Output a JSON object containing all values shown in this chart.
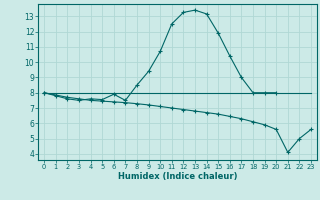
{
  "xlabel": "Humidex (Indice chaleur)",
  "xlim": [
    -0.5,
    23.5
  ],
  "ylim": [
    3.6,
    13.8
  ],
  "yticks": [
    4,
    5,
    6,
    7,
    8,
    9,
    10,
    11,
    12,
    13
  ],
  "xticks": [
    0,
    1,
    2,
    3,
    4,
    5,
    6,
    7,
    8,
    9,
    10,
    11,
    12,
    13,
    14,
    15,
    16,
    17,
    18,
    19,
    20,
    21,
    22,
    23
  ],
  "background_color": "#cceae7",
  "grid_color": "#b0d8d4",
  "line_color": "#006666",
  "curve1_x": [
    0,
    1,
    2,
    3,
    4,
    5,
    6,
    7,
    8,
    9,
    10,
    11,
    12,
    13,
    14,
    15,
    16,
    17,
    18,
    19,
    20
  ],
  "curve1_y": [
    8.0,
    7.8,
    7.6,
    7.5,
    7.6,
    7.55,
    7.9,
    7.5,
    8.5,
    9.4,
    10.7,
    12.5,
    13.25,
    13.4,
    13.15,
    11.9,
    10.4,
    9.0,
    8.0,
    8.0,
    8.0
  ],
  "curve2_x": [
    0,
    1,
    2,
    3,
    4,
    5,
    6,
    7,
    8,
    9,
    10,
    11,
    12,
    13,
    14,
    15,
    16,
    17,
    18,
    19,
    20,
    21,
    22,
    23
  ],
  "curve2_y": [
    8.0,
    7.85,
    7.7,
    7.6,
    7.5,
    7.45,
    7.4,
    7.35,
    7.28,
    7.2,
    7.1,
    7.0,
    6.9,
    6.8,
    6.7,
    6.6,
    6.45,
    6.3,
    6.1,
    5.9,
    5.6,
    4.1,
    5.0,
    5.6
  ],
  "curve3_x": [
    0,
    1,
    19,
    20,
    21,
    22,
    23
  ],
  "curve3_y": [
    8.0,
    8.0,
    8.0,
    8.0,
    8.0,
    8.0,
    8.0
  ]
}
